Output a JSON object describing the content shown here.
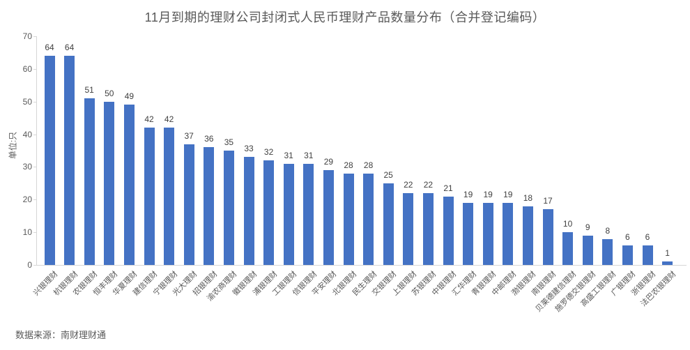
{
  "chart_data": {
    "type": "bar",
    "title": "11月到期的理财公司封闭式人民币理财产品数量分布（合并登记编码）",
    "ylabel": "单位:只",
    "xlabel": "",
    "categories": [
      "兴银理财",
      "杭银理财",
      "农银理财",
      "恒丰理财",
      "华夏理财",
      "建信理财",
      "宁银理财",
      "光大理财",
      "招银理财",
      "渝农商理财",
      "徽银理财",
      "浦银理财",
      "工银理财",
      "信银理财",
      "平安理财",
      "北银理财",
      "民生理财",
      "交银理财",
      "上银理财",
      "苏银理财",
      "中银理财",
      "汇华理财",
      "青银理财",
      "中邮理财",
      "渤银理财",
      "南银理财",
      "贝莱德建信理财",
      "施罗德交银理财",
      "高盛工银理财",
      "广银理财",
      "浙银理财",
      "法巴农银理财"
    ],
    "values": [
      64,
      64,
      51,
      50,
      49,
      42,
      42,
      37,
      36,
      35,
      33,
      32,
      31,
      31,
      29,
      28,
      28,
      25,
      22,
      22,
      21,
      19,
      19,
      19,
      18,
      17,
      10,
      9,
      8,
      6,
      6,
      1
    ],
    "ylim": [
      0,
      70
    ],
    "ytick_interval": 10,
    "grid": false,
    "legend": null,
    "bar_color": "#4472c4"
  },
  "source_note": "数据来源：南财理财通",
  "colors": {
    "background": "#ffffff",
    "bar": "#4472c4",
    "title_text": "#595959",
    "axis_text": "#595959",
    "value_label_text": "#404040",
    "axis_line": "#d6d6d6"
  }
}
